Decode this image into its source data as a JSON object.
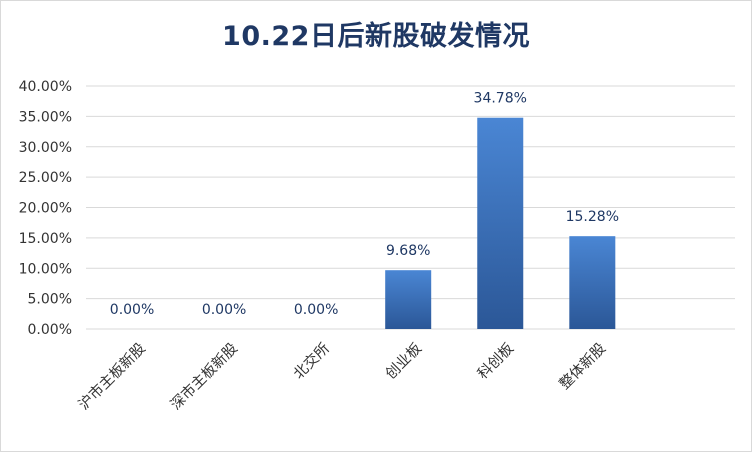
{
  "chart_data": {
    "type": "bar",
    "title": "10.22日后新股破发情况",
    "categories": [
      "沪市主板新股",
      "深市主板新股",
      "北交所",
      "创业板",
      "科创板",
      "整体新股"
    ],
    "values": [
      0.0,
      0.0,
      0.0,
      9.68,
      34.78,
      15.28
    ],
    "data_labels": [
      "0.00%",
      "0.00%",
      "0.00%",
      "9.68%",
      "34.78%",
      "15.28%"
    ],
    "y_ticks": [
      "0.00%",
      "5.00%",
      "10.00%",
      "15.00%",
      "20.00%",
      "25.00%",
      "30.00%",
      "35.00%",
      "40.00%"
    ],
    "ylim": [
      0,
      40
    ],
    "xlabel": "",
    "ylabel": "",
    "grid": true,
    "legend": "none",
    "bar_color_top": "#4a86d4",
    "bar_color_bottom": "#2b5797",
    "title_color": "#1f3864"
  }
}
